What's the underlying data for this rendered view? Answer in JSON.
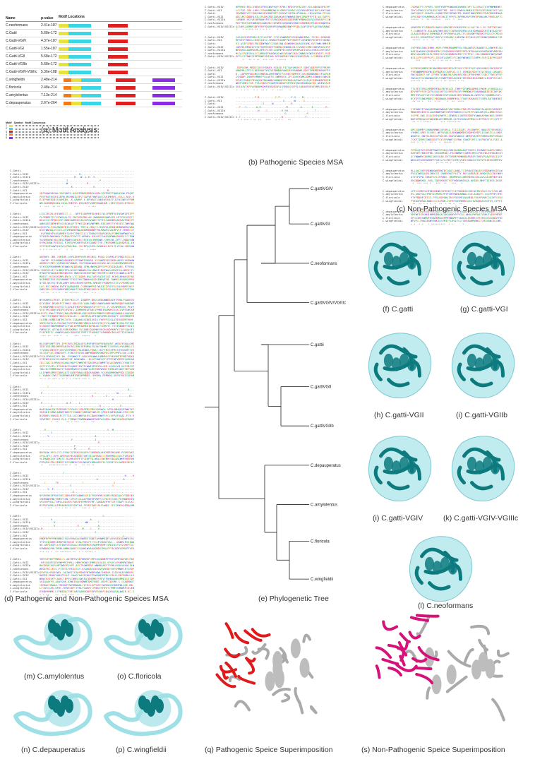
{
  "captions": {
    "a": "(a) Motif Analysis",
    "b": "(b) Pathogenic Species MSA",
    "c": "(c) Non-Pathogenic Species MSA",
    "d": "(d) Pathogenic and  Non-Pathogenic Speices MSA",
    "e": "(e) Phylogenetic Tree",
    "f": "(f) C.gatti",
    "g": "(g) C.gatti-VGI",
    "h": "(h) C.gatti-VGII",
    "i1": "(i) C.gatti-VGIIb",
    "i2": "(i) C.gatti-VGIV",
    "k": "(k) C.gatti-VGIV-VGIIIc",
    "l": "(l) C.neoformans",
    "m": "(m) C.amylolentus",
    "o": "(o) C.floricola",
    "n": "(n) C.depauperatus",
    "p": "(p) C.wingfieldii",
    "q": "(q) Pathogenic Speice Superimposition",
    "s": "(s) Non-Pathogenic Speice Superimposition"
  },
  "motif": {
    "headers": [
      "Name",
      "p-value",
      "Motif Locations"
    ],
    "rows": [
      {
        "name": "C.neoformans",
        "p": "2.41e-187"
      },
      {
        "name": "C.Gatti",
        "p": "5.68e-172"
      },
      {
        "name": "C.Gatti-VGIV",
        "p": "4.37e-187"
      },
      {
        "name": "C.Gatti-VGI",
        "p": "1.55e-187"
      },
      {
        "name": "C.Gatti-VGII",
        "p": "5.68e-172"
      },
      {
        "name": "C.Gatti-VGIIb",
        "p": "5.68e-172"
      },
      {
        "name": "C.Gatti-VGIV-VGIIIc",
        "p": "5.36e-188"
      },
      {
        "name": "C.wingfieldii",
        "p": "2.48e-214"
      },
      {
        "name": "C.floricola",
        "p": "2.48e-214"
      },
      {
        "name": "C.amylolentus",
        "p": "7.13e-214"
      },
      {
        "name": "C.depauperatus",
        "p": "2.67e-264"
      }
    ],
    "legend_headers": [
      "Motif",
      "Symbol",
      "Motif Consensus"
    ],
    "legend_rows": [
      "1",
      "2",
      "3",
      "4",
      "5"
    ],
    "colors": [
      "#e8e23c",
      "#3ad6e6",
      "#e02020",
      "#f07a1a",
      "#8b2be2",
      "#3b9c3b"
    ]
  },
  "msa_b_names": [
    "C.Gatti-VGIV",
    "C.Gatti-VGI",
    "C.Gatti",
    "C.Gatti-VGII",
    "C.Gatti-VGIIb",
    "C.neoformans",
    "C.Gatti-VGIV/VGIIIc"
  ],
  "msa_c_names": [
    "C.depauperatus",
    "C.amylolentus",
    "C.floricola",
    "C.wingfieldii"
  ],
  "msa_d_names": [
    "C.Gatti",
    "C.Gatti-VGII",
    "C.Gatti-VGIIb",
    "C.neoformans",
    "C.Gatti-VGIV/VGIIIc",
    "C.Gatti-VGIV",
    "C.Gatti-VGI",
    "C.depauperatus",
    "C.amylolentus",
    "C.wingfieldii",
    "C.floricola"
  ],
  "tree_leaves": [
    "C.gattiVGIV",
    "C.gattiVGI",
    "C.neoformans",
    "C.gattiVGIV/VGIIIc",
    "C.gattii",
    "C.gattiVGII",
    "C.gattiVGIIb",
    "C.depauperatus",
    "C.amylolentus",
    "C.floricola",
    "C.wingfieldii"
  ]
}
